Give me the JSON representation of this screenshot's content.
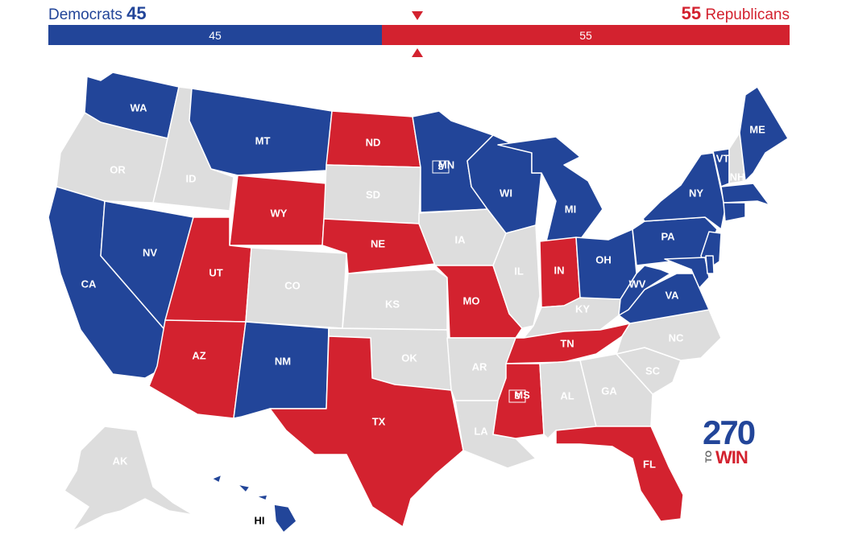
{
  "header": {
    "dem_name": "Democrats",
    "dem_count": "45",
    "rep_name": "Republicans",
    "rep_count": "55",
    "bar_dem_value": "45",
    "bar_rep_value": "55"
  },
  "colors": {
    "dem": "#224599",
    "rep": "#d3222f",
    "none": "#dddddd"
  },
  "states": [
    {
      "abbr": "WA",
      "party": "dem"
    },
    {
      "abbr": "OR",
      "party": "none"
    },
    {
      "abbr": "CA",
      "party": "dem"
    },
    {
      "abbr": "ID",
      "party": "none"
    },
    {
      "abbr": "NV",
      "party": "dem"
    },
    {
      "abbr": "MT",
      "party": "dem"
    },
    {
      "abbr": "WY",
      "party": "rep"
    },
    {
      "abbr": "UT",
      "party": "rep"
    },
    {
      "abbr": "AZ",
      "party": "rep"
    },
    {
      "abbr": "CO",
      "party": "none"
    },
    {
      "abbr": "NM",
      "party": "dem"
    },
    {
      "abbr": "ND",
      "party": "rep"
    },
    {
      "abbr": "SD",
      "party": "none"
    },
    {
      "abbr": "NE",
      "party": "rep"
    },
    {
      "abbr": "KS",
      "party": "none"
    },
    {
      "abbr": "OK",
      "party": "none"
    },
    {
      "abbr": "TX",
      "party": "rep"
    },
    {
      "abbr": "MN",
      "party": "dem"
    },
    {
      "abbr": "IA",
      "party": "none"
    },
    {
      "abbr": "MO",
      "party": "rep"
    },
    {
      "abbr": "AR",
      "party": "none"
    },
    {
      "abbr": "LA",
      "party": "none"
    },
    {
      "abbr": "WI",
      "party": "dem"
    },
    {
      "abbr": "IL",
      "party": "none"
    },
    {
      "abbr": "MI",
      "party": "dem"
    },
    {
      "abbr": "IN",
      "party": "rep"
    },
    {
      "abbr": "OH",
      "party": "dem"
    },
    {
      "abbr": "KY",
      "party": "none"
    },
    {
      "abbr": "TN",
      "party": "rep"
    },
    {
      "abbr": "MS",
      "party": "rep"
    },
    {
      "abbr": "AL",
      "party": "none"
    },
    {
      "abbr": "GA",
      "party": "none"
    },
    {
      "abbr": "FL",
      "party": "rep"
    },
    {
      "abbr": "SC",
      "party": "none"
    },
    {
      "abbr": "NC",
      "party": "none"
    },
    {
      "abbr": "VA",
      "party": "dem"
    },
    {
      "abbr": "WV",
      "party": "dem"
    },
    {
      "abbr": "PA",
      "party": "dem"
    },
    {
      "abbr": "NY",
      "party": "dem"
    },
    {
      "abbr": "VT",
      "party": "dem"
    },
    {
      "abbr": "NH",
      "party": "none"
    },
    {
      "abbr": "ME",
      "party": "dem"
    },
    {
      "abbr": "MA",
      "party": "dem"
    },
    {
      "abbr": "CT",
      "party": "dem"
    },
    {
      "abbr": "NJ",
      "party": "dem"
    },
    {
      "abbr": "MD",
      "party": "dem"
    },
    {
      "abbr": "DE",
      "party": "dem"
    },
    {
      "abbr": "AK",
      "party": "none"
    },
    {
      "abbr": "HI",
      "party": "dem"
    }
  ],
  "special_markers": [
    "MN",
    "MS"
  ],
  "logo": {
    "number": "270",
    "to": "TO",
    "win": "WIN"
  }
}
